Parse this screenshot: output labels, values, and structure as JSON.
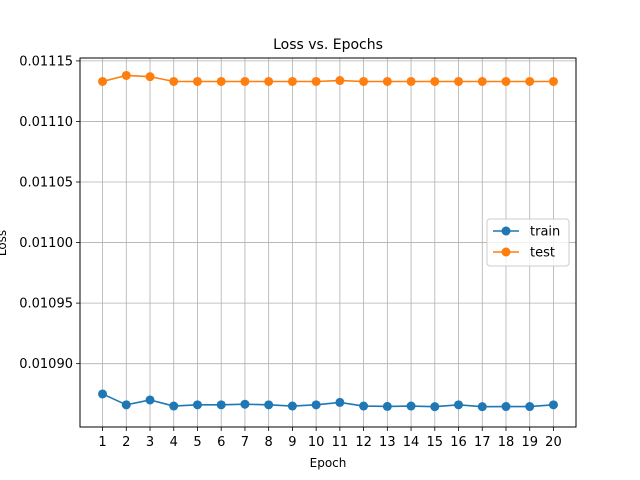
{
  "chart_data": {
    "type": "line",
    "title": "Loss vs. Epochs",
    "xlabel": "Epoch",
    "ylabel": "Loss",
    "x": [
      1,
      2,
      3,
      4,
      5,
      6,
      7,
      8,
      9,
      10,
      11,
      12,
      13,
      14,
      15,
      16,
      17,
      18,
      19,
      20
    ],
    "xlim": [
      0.05,
      20.95
    ],
    "ylim": [
      0.0108477,
      0.0111524
    ],
    "yticks": [
      "0.01090",
      "0.01095",
      "0.01100",
      "0.01105",
      "0.01110",
      "0.01115"
    ],
    "grid": true,
    "legend_position": "center-right",
    "series": [
      {
        "name": "train",
        "color": "#1f77b4",
        "marker": "circle",
        "values": [
          0.010875,
          0.010866,
          0.01087,
          0.010865,
          0.010866,
          0.010866,
          0.0108665,
          0.010866,
          0.010865,
          0.010866,
          0.010868,
          0.010865,
          0.0108647,
          0.010865,
          0.0108645,
          0.010866,
          0.0108645,
          0.0108646,
          0.0108646,
          0.010866
        ]
      },
      {
        "name": "test",
        "color": "#ff7f0e",
        "marker": "circle",
        "values": [
          0.011133,
          0.011138,
          0.011137,
          0.011133,
          0.011133,
          0.011133,
          0.011133,
          0.011133,
          0.011133,
          0.011133,
          0.0111338,
          0.011133,
          0.011133,
          0.011133,
          0.011133,
          0.011133,
          0.011133,
          0.011133,
          0.011133,
          0.011133
        ]
      }
    ]
  }
}
